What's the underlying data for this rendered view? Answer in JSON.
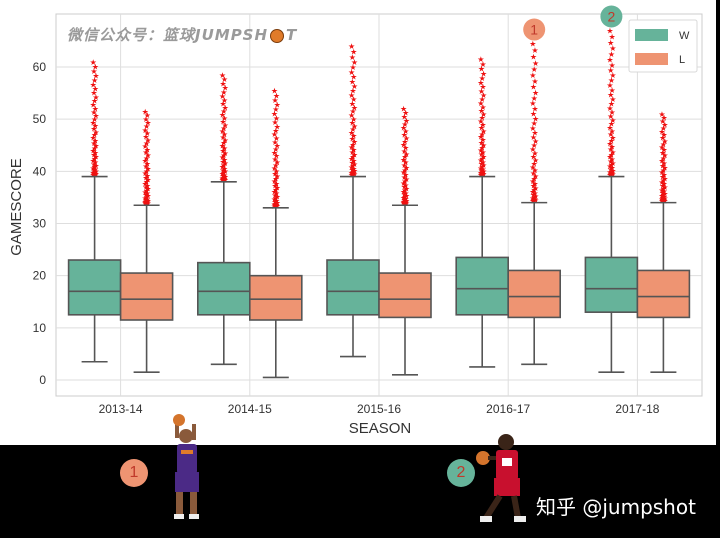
{
  "watermark": {
    "text": "微信公众号：篮球JUMPSH",
    "tail": "T"
  },
  "chart_data": {
    "type": "box",
    "xlabel": "SEASON",
    "ylabel": "GAMESCORE",
    "ylim": [
      -3,
      70
    ],
    "yticks": [
      0,
      10,
      20,
      30,
      40,
      50,
      60
    ],
    "categories": [
      "2013-14",
      "2014-15",
      "2015-16",
      "2016-17",
      "2017-18"
    ],
    "grid": true,
    "legend": {
      "placement": "top-right"
    },
    "series": [
      {
        "name": "W",
        "color": "#66b39a",
        "boxes": [
          {
            "whisker_low": 3.5,
            "q1": 12.5,
            "median": 17,
            "q3": 23,
            "whisker_high": 39,
            "outlier_max": 61
          },
          {
            "whisker_low": 3,
            "q1": 12.5,
            "median": 17,
            "q3": 22.5,
            "whisker_high": 38,
            "outlier_max": 58.5
          },
          {
            "whisker_low": 4.5,
            "q1": 12.5,
            "median": 17,
            "q3": 23,
            "whisker_high": 39,
            "outlier_max": 64
          },
          {
            "whisker_low": 2.5,
            "q1": 12.5,
            "median": 17.5,
            "q3": 23.5,
            "whisker_high": 39,
            "outlier_max": 61.5
          },
          {
            "whisker_low": 1.5,
            "q1": 13,
            "median": 17.5,
            "q3": 23.5,
            "whisker_high": 39,
            "outlier_max": 67
          }
        ]
      },
      {
        "name": "L",
        "color": "#ee9472",
        "boxes": [
          {
            "whisker_low": 1.5,
            "q1": 11.5,
            "median": 15.5,
            "q3": 20.5,
            "whisker_high": 33.5,
            "outlier_max": 51.5
          },
          {
            "whisker_low": 0.5,
            "q1": 11.5,
            "median": 15.5,
            "q3": 20,
            "whisker_high": 33,
            "outlier_max": 55.5
          },
          {
            "whisker_low": 1,
            "q1": 12,
            "median": 15.5,
            "q3": 20.5,
            "whisker_high": 33.5,
            "outlier_max": 52
          },
          {
            "whisker_low": 3,
            "q1": 12,
            "median": 16,
            "q3": 21,
            "whisker_high": 34,
            "outlier_max": 64.5
          },
          {
            "whisker_low": 1.5,
            "q1": 12,
            "median": 16,
            "q3": 21,
            "whisker_high": 34,
            "outlier_max": 51
          }
        ]
      }
    ],
    "annotations": [
      {
        "label": "1",
        "color": "#ee9472",
        "season": "2016-17",
        "series": "L"
      },
      {
        "label": "2",
        "color": "#66b39a",
        "season": "2017-18",
        "series": "W"
      }
    ]
  },
  "bottom": {
    "badge1": {
      "label": "1",
      "color": "#ee9472"
    },
    "badge2": {
      "label": "2",
      "color": "#66b39a"
    },
    "footer": "知乎 @jumpshot"
  }
}
